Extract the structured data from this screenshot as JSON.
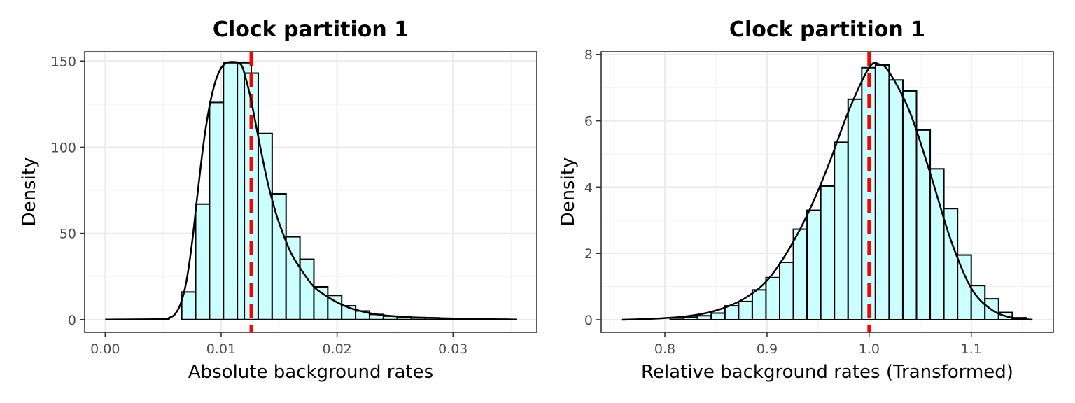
{
  "chart_data": [
    {
      "type": "histogram",
      "title": "Clock partition 1",
      "xlabel": "Absolute background rates",
      "ylabel": "Density",
      "xlim": [
        -0.00177,
        0.03723
      ],
      "ylim": [
        -7.4,
        155.4
      ],
      "xticks": [
        0.0,
        0.01,
        0.02,
        0.03
      ],
      "xtick_labels": [
        "0.00",
        "0.01",
        "0.02",
        "0.03"
      ],
      "yticks": [
        0,
        50,
        100,
        150
      ],
      "ytick_labels": [
        "0",
        "50",
        "100",
        "150"
      ],
      "grid": true,
      "bar_fill": "#ccffff",
      "bar_edge": "#000000",
      "bin_width": 0.0012,
      "bins": [
        {
          "start": 0.0066,
          "value": 16
        },
        {
          "start": 0.0078,
          "value": 67
        },
        {
          "start": 0.009,
          "value": 126
        },
        {
          "start": 0.0102,
          "value": 149
        },
        {
          "start": 0.0114,
          "value": 149
        },
        {
          "start": 0.012,
          "value": 143
        },
        {
          "start": 0.0132,
          "value": 108
        },
        {
          "start": 0.0144,
          "value": 73
        },
        {
          "start": 0.0156,
          "value": 48
        },
        {
          "start": 0.0168,
          "value": 35
        },
        {
          "start": 0.018,
          "value": 19
        },
        {
          "start": 0.0192,
          "value": 14
        },
        {
          "start": 0.0204,
          "value": 8
        },
        {
          "start": 0.0216,
          "value": 5
        },
        {
          "start": 0.0228,
          "value": 3
        },
        {
          "start": 0.024,
          "value": 2
        },
        {
          "start": 0.0252,
          "value": 1.5
        },
        {
          "start": 0.0264,
          "value": 1
        },
        {
          "start": 0.0276,
          "value": 1
        },
        {
          "start": 0.0288,
          "value": 0.5
        },
        {
          "start": 0.03,
          "value": 0.5
        },
        {
          "start": 0.0312,
          "value": 0.3
        },
        {
          "start": 0.0324,
          "value": 0.3
        },
        {
          "start": 0.0336,
          "value": 0.2
        }
      ],
      "density_curve": {
        "color": "#000000",
        "x": [
          0.0,
          0.005,
          0.0055,
          0.006,
          0.0065,
          0.007,
          0.0075,
          0.008,
          0.0085,
          0.009,
          0.0095,
          0.01,
          0.0105,
          0.011,
          0.0115,
          0.0118,
          0.012,
          0.0125,
          0.013,
          0.0135,
          0.014,
          0.0145,
          0.015,
          0.016,
          0.017,
          0.018,
          0.019,
          0.02,
          0.021,
          0.022,
          0.023,
          0.024,
          0.026,
          0.028,
          0.03,
          0.032,
          0.0355
        ],
        "y": [
          0,
          0.3,
          1,
          3,
          9,
          22,
          45,
          75,
          103,
          124,
          138,
          146,
          149,
          149.5,
          149,
          147,
          143,
          130,
          113,
          96,
          80,
          67,
          56,
          39,
          28,
          19,
          14,
          10,
          7,
          5,
          3.5,
          2.5,
          1.5,
          1,
          0.6,
          0.3,
          0
        ]
      },
      "reference_line": {
        "x": 0.0126,
        "color": "#ff0000",
        "style": "dashed"
      }
    },
    {
      "type": "histogram",
      "title": "Clock partition 1",
      "xlabel": "Relative background rates (Transformed)",
      "ylabel": "Density",
      "xlim": [
        0.7376,
        1.1804
      ],
      "ylim": [
        -0.38,
        8.08
      ],
      "xticks": [
        0.8,
        0.9,
        1.0,
        1.1
      ],
      "xtick_labels": [
        "0.8",
        "0.9",
        "1.0",
        "1.1"
      ],
      "yticks": [
        0,
        2,
        4,
        6,
        8
      ],
      "ytick_labels": [
        "0",
        "2",
        "4",
        "6",
        "8"
      ],
      "grid": true,
      "bar_fill": "#ccffff",
      "bar_edge": "#000000",
      "bin_width": 0.0134,
      "bins": [
        {
          "start": 0.8052,
          "value": 0.05
        },
        {
          "start": 0.8186,
          "value": 0.08
        },
        {
          "start": 0.832,
          "value": 0.12
        },
        {
          "start": 0.8454,
          "value": 0.2
        },
        {
          "start": 0.8588,
          "value": 0.42
        },
        {
          "start": 0.8722,
          "value": 0.55
        },
        {
          "start": 0.8856,
          "value": 0.9
        },
        {
          "start": 0.899,
          "value": 1.27
        },
        {
          "start": 0.9124,
          "value": 1.73
        },
        {
          "start": 0.9258,
          "value": 2.73
        },
        {
          "start": 0.9392,
          "value": 3.3
        },
        {
          "start": 0.9526,
          "value": 4.03
        },
        {
          "start": 0.966,
          "value": 5.35
        },
        {
          "start": 0.9794,
          "value": 6.65
        },
        {
          "start": 0.9928,
          "value": 7.6
        },
        {
          "start": 1.0062,
          "value": 7.68
        },
        {
          "start": 1.0196,
          "value": 7.23
        },
        {
          "start": 1.033,
          "value": 6.9
        },
        {
          "start": 1.0464,
          "value": 5.72
        },
        {
          "start": 1.0598,
          "value": 4.55
        },
        {
          "start": 1.0732,
          "value": 3.35
        },
        {
          "start": 1.0866,
          "value": 1.95
        },
        {
          "start": 1.1,
          "value": 1.03
        },
        {
          "start": 1.1134,
          "value": 0.63
        },
        {
          "start": 1.1268,
          "value": 0.22
        },
        {
          "start": 1.1402,
          "value": 0.06
        }
      ],
      "density_curve": {
        "color": "#000000",
        "x": [
          0.758,
          0.78,
          0.8,
          0.82,
          0.84,
          0.86,
          0.88,
          0.9,
          0.92,
          0.94,
          0.96,
          0.98,
          1.0,
          1.01,
          1.02,
          1.04,
          1.06,
          1.08,
          1.1,
          1.12,
          1.14,
          1.16
        ],
        "y": [
          0,
          0.02,
          0.05,
          0.1,
          0.2,
          0.38,
          0.68,
          1.18,
          2.05,
          3.2,
          4.65,
          6.3,
          7.6,
          7.7,
          7.45,
          6.25,
          4.4,
          2.4,
          0.95,
          0.3,
          0.06,
          0
        ]
      },
      "reference_line": {
        "x": 1.0,
        "color": "#ff0000",
        "style": "dashed"
      }
    }
  ]
}
